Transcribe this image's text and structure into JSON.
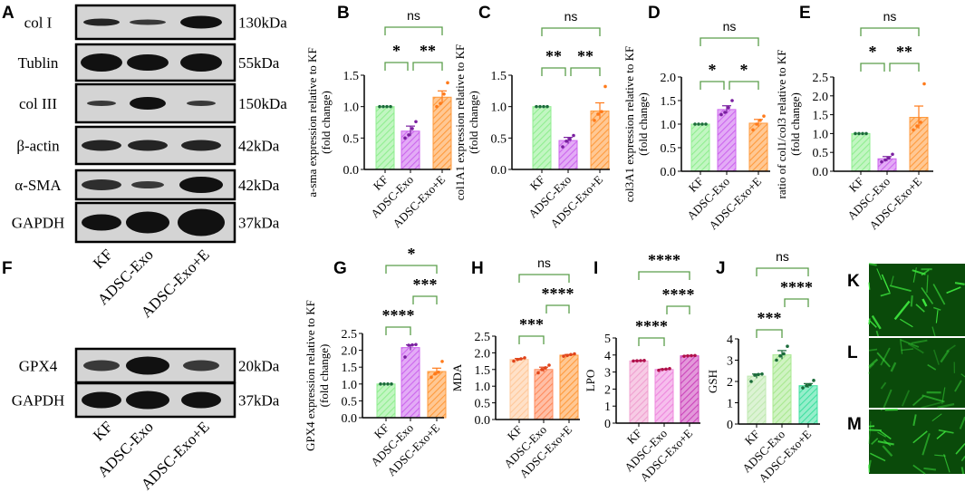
{
  "groups": [
    "KF",
    "ADSC-Exo",
    "ADSC-Exo+E"
  ],
  "blot_A": {
    "letter": "A",
    "rows": [
      {
        "label": "col I",
        "kda": "130kDa"
      },
      {
        "label": "Tublin",
        "kda": "55kDa"
      },
      {
        "label": "col III",
        "kda": "150kDa"
      },
      {
        "label": "β-actin",
        "kda": "42kDa"
      },
      {
        "label": "α-SMA",
        "kda": "42kDa"
      },
      {
        "label": "GAPDH",
        "kda": "37kDa"
      }
    ]
  },
  "blot_F": {
    "letter": "F",
    "rows": [
      {
        "label": "GPX4",
        "kda": "20kDa"
      },
      {
        "label": "GAPDH",
        "kda": "37kDa"
      }
    ]
  },
  "images": [
    {
      "letter": "K"
    },
    {
      "letter": "L"
    },
    {
      "letter": "M"
    }
  ],
  "colors": {
    "bracket": "#5a9e4a",
    "kf": "#90ee90",
    "adsc": "#cc66ee",
    "exoE": "#ff9a3c"
  },
  "chart_data": [
    {
      "id": "B",
      "type": "bar",
      "ylabel": [
        "a-sma expression relative to KF",
        "(fold change)"
      ],
      "ylim": [
        0,
        1.5
      ],
      "ticks": [
        0,
        0.5,
        1.0,
        1.5
      ],
      "categories": [
        "KF",
        "ADSC-Exo",
        "ADSC-Exo+E"
      ],
      "values": [
        1.0,
        0.61,
        1.15
      ],
      "errors": [
        0,
        0.08,
        0.1
      ],
      "points": [
        [
          1,
          1,
          1,
          1
        ],
        [
          0.5,
          0.55,
          0.65,
          0.76
        ],
        [
          1.0,
          1.05,
          1.2,
          1.38
        ]
      ],
      "colors": [
        "#90ee90",
        "#cc66ee",
        "#ff9a3c"
      ],
      "dots": [
        "#1a6b3a",
        "#7a1fa0",
        "#ff7a1a"
      ],
      "comparisons": [
        {
          "a": 0,
          "b": 2,
          "label": "ns"
        },
        {
          "a": 0,
          "b": 1,
          "label": "*"
        },
        {
          "a": 1,
          "b": 2,
          "label": "**"
        }
      ]
    },
    {
      "id": "C",
      "type": "bar",
      "ylabel": [
        "col1A1 expression relative to KF",
        "(fold change)"
      ],
      "ylim": [
        0,
        1.5
      ],
      "ticks": [
        0,
        0.5,
        1.0,
        1.5
      ],
      "categories": [
        "KF",
        "ADSC-Exo",
        "ADSC-Exo+E"
      ],
      "values": [
        1.0,
        0.46,
        0.93
      ],
      "errors": [
        0,
        0.05,
        0.13
      ],
      "points": [
        [
          1,
          1,
          1,
          1
        ],
        [
          0.36,
          0.45,
          0.48,
          0.54
        ],
        [
          0.78,
          0.88,
          0.92,
          1.32
        ]
      ],
      "colors": [
        "#90ee90",
        "#cc66ee",
        "#ff9a3c"
      ],
      "dots": [
        "#1a6b3a",
        "#7a1fa0",
        "#ff7a1a"
      ],
      "comparisons": [
        {
          "a": 0,
          "b": 2,
          "label": "ns"
        },
        {
          "a": 0,
          "b": 1,
          "label": "**"
        },
        {
          "a": 1,
          "b": 2,
          "label": "**"
        }
      ]
    },
    {
      "id": "D",
      "type": "bar",
      "ylabel": [
        "col3A1 expression relative to KF",
        "(fold change)"
      ],
      "ylim": [
        0,
        2.0
      ],
      "ticks": [
        0,
        0.5,
        1.0,
        1.5,
        2.0
      ],
      "categories": [
        "KF",
        "ADSC-Exo",
        "ADSC-Exo+E"
      ],
      "values": [
        1.0,
        1.31,
        1.02
      ],
      "errors": [
        0,
        0.08,
        0.08
      ],
      "points": [
        [
          1,
          1,
          1,
          1
        ],
        [
          1.2,
          1.25,
          1.35,
          1.5
        ],
        [
          0.88,
          1.0,
          1.08,
          1.17
        ]
      ],
      "colors": [
        "#90ee90",
        "#cc66ee",
        "#ff9a3c"
      ],
      "dots": [
        "#1a6b3a",
        "#7a1fa0",
        "#ff7a1a"
      ],
      "comparisons": [
        {
          "a": 0,
          "b": 2,
          "label": "ns"
        },
        {
          "a": 0,
          "b": 1,
          "label": "*"
        },
        {
          "a": 1,
          "b": 2,
          "label": "*"
        }
      ]
    },
    {
      "id": "E",
      "type": "bar",
      "ylabel": [
        "ratio of col1/col3 relative to KF",
        "(fold change)"
      ],
      "ylim": [
        0,
        2.5
      ],
      "ticks": [
        0,
        0.5,
        1.0,
        1.5,
        2.0,
        2.5
      ],
      "categories": [
        "KF",
        "ADSC-Exo",
        "ADSC-Exo+E"
      ],
      "values": [
        1.0,
        0.33,
        1.43
      ],
      "errors": [
        0,
        0.06,
        0.3
      ],
      "points": [
        [
          1,
          1,
          1,
          1
        ],
        [
          0.25,
          0.3,
          0.35,
          0.45
        ],
        [
          1.1,
          1.2,
          1.3,
          2.32
        ]
      ],
      "colors": [
        "#90ee90",
        "#cc66ee",
        "#ff9a3c"
      ],
      "dots": [
        "#1a6b3a",
        "#7a1fa0",
        "#ff7a1a"
      ],
      "comparisons": [
        {
          "a": 0,
          "b": 2,
          "label": "ns"
        },
        {
          "a": 0,
          "b": 1,
          "label": "*"
        },
        {
          "a": 1,
          "b": 2,
          "label": "**"
        }
      ]
    },
    {
      "id": "G",
      "type": "bar",
      "ylabel": [
        "GPX4 expression relative to KF",
        "(fold change)"
      ],
      "ylim": [
        0,
        2.5
      ],
      "ticks": [
        0,
        0.5,
        1.0,
        1.5,
        2.0,
        2.5
      ],
      "categories": [
        "KF",
        "ADSC-Exo",
        "ADSC-Exo+E"
      ],
      "values": [
        1.0,
        2.08,
        1.37
      ],
      "errors": [
        0,
        0.08,
        0.1
      ],
      "points": [
        [
          1,
          1,
          1,
          1
        ],
        [
          1.8,
          2.15,
          2.16,
          2.17
        ],
        [
          1.2,
          1.3,
          1.35,
          1.67
        ]
      ],
      "colors": [
        "#90ee90",
        "#cc66ee",
        "#ff9a3c"
      ],
      "dots": [
        "#1a6b3a",
        "#7a1fa0",
        "#ff7a1a"
      ],
      "comparisons": [
        {
          "a": 0,
          "b": 2,
          "label": "*"
        },
        {
          "a": 1,
          "b": 2,
          "label": "***"
        },
        {
          "a": 0,
          "b": 1,
          "label": "****"
        }
      ]
    },
    {
      "id": "H",
      "type": "bar",
      "ylabel": [
        "MDA"
      ],
      "ylim": [
        0,
        2.5
      ],
      "ticks": [
        0,
        0.5,
        1.0,
        1.5,
        2.0,
        2.5
      ],
      "categories": [
        "KF",
        "ADSC-Exo",
        "ADSC-Exo+E"
      ],
      "values": [
        1.8,
        1.5,
        1.93
      ],
      "errors": [
        0.03,
        0.07,
        0.02
      ],
      "points": [
        [
          1.75,
          1.8,
          1.82,
          1.85
        ],
        [
          1.4,
          1.5,
          1.55,
          1.63
        ],
        [
          1.9,
          1.92,
          1.95,
          1.97
        ]
      ],
      "colors": [
        "#ffc89a",
        "#ff8a5c",
        "#ff9a3c"
      ],
      "dots": [
        "#e0441a",
        "#e0441a",
        "#e0441a"
      ],
      "comparisons": [
        {
          "a": 0,
          "b": 2,
          "label": "ns"
        },
        {
          "a": 1,
          "b": 2,
          "label": "****"
        },
        {
          "a": 0,
          "b": 1,
          "label": "***"
        }
      ]
    },
    {
      "id": "I",
      "type": "bar",
      "ylabel": [
        "LPO"
      ],
      "ylim": [
        0,
        5
      ],
      "ticks": [
        0,
        1,
        2,
        3,
        4,
        5
      ],
      "categories": [
        "KF",
        "ADSC-Exo",
        "ADSC-Exo+E"
      ],
      "values": [
        3.65,
        3.15,
        3.95
      ],
      "errors": [
        0.02,
        0.03,
        0.02
      ],
      "points": [
        [
          3.65,
          3.66,
          3.67,
          3.68
        ],
        [
          3.1,
          3.15,
          3.17,
          3.2
        ],
        [
          3.93,
          3.95,
          3.96,
          3.97
        ]
      ],
      "colors": [
        "#f0a0d0",
        "#ee88dd",
        "#cc44bb"
      ],
      "dots": [
        "#b0104a",
        "#b0104a",
        "#b0104a"
      ],
      "comparisons": [
        {
          "a": 0,
          "b": 2,
          "label": "****"
        },
        {
          "a": 1,
          "b": 2,
          "label": "****"
        },
        {
          "a": 0,
          "b": 1,
          "label": "****"
        }
      ]
    },
    {
      "id": "J",
      "type": "bar",
      "ylabel": [
        "GSH"
      ],
      "ylim": [
        0,
        4
      ],
      "ticks": [
        0,
        1,
        2,
        3,
        4
      ],
      "categories": [
        "KF",
        "ADSC-Exo",
        "ADSC-Exo+E"
      ],
      "values": [
        2.25,
        3.25,
        1.8
      ],
      "errors": [
        0.1,
        0.2,
        0.1
      ],
      "points": [
        [
          2.0,
          2.3,
          2.33,
          2.35
        ],
        [
          3.0,
          3.2,
          3.3,
          3.65
        ],
        [
          1.7,
          1.8,
          1.85,
          2.05
        ]
      ],
      "colors": [
        "#bfe8b0",
        "#a8e890",
        "#40e0a0"
      ],
      "dots": [
        "#1a6b3a",
        "#1a6b3a",
        "#1a6b3a"
      ],
      "comparisons": [
        {
          "a": 0,
          "b": 2,
          "label": "ns"
        },
        {
          "a": 1,
          "b": 2,
          "label": "****"
        },
        {
          "a": 0,
          "b": 1,
          "label": "***"
        }
      ]
    }
  ]
}
